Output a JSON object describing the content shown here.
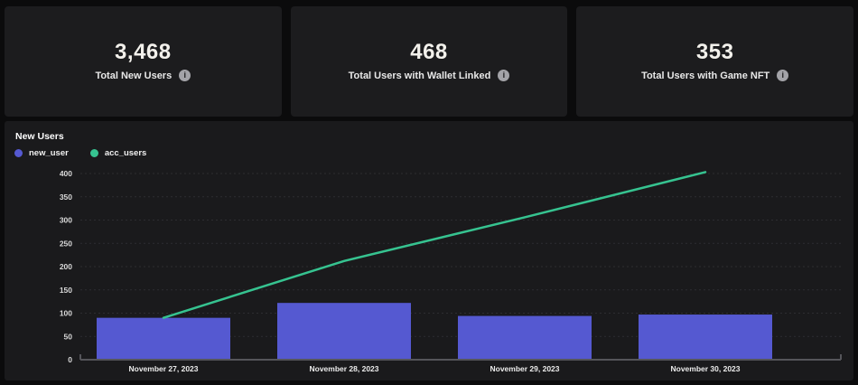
{
  "cards": [
    {
      "value": "3,468",
      "label": "Total New Users"
    },
    {
      "value": "468",
      "label": "Total Users with Wallet Linked"
    },
    {
      "value": "353",
      "label": "Total Users with Game NFT"
    }
  ],
  "info_icon_glyph": "i",
  "chart": {
    "title": "New Users"
  },
  "chart_data": {
    "type": "bar",
    "title": "New Users",
    "categories": [
      "November 27, 2023",
      "November 28, 2023",
      "November 29, 2023",
      "November 30, 2023"
    ],
    "series": [
      {
        "name": "new_user",
        "type": "bar",
        "color": "#5559d1",
        "values": [
          90,
          122,
          94,
          97
        ]
      },
      {
        "name": "acc_users",
        "type": "line",
        "color": "#36c390",
        "values": [
          90,
          212,
          306,
          403
        ]
      }
    ],
    "ylabel": "",
    "xlabel": "",
    "ylim": [
      0,
      400
    ],
    "ytick_step": 50,
    "grid": "dashed-horizontal",
    "legend_position": "top-left"
  },
  "colors": {
    "page_bg": "#0b0b0c",
    "card_bg": "#1c1c1e",
    "panel_bg": "#1a1a1c",
    "bar_purple": "#5559d1",
    "line_green": "#36c390",
    "gridline": "#2d2d31",
    "axis_line": "#55555a"
  }
}
